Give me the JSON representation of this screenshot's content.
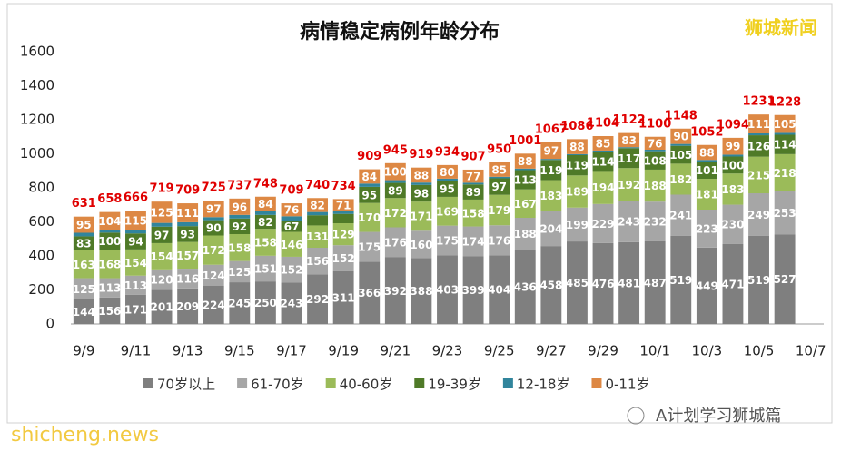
{
  "chart_data": {
    "type": "stacked-bar",
    "title": "病情稳定病例年龄分布",
    "watermarks": [
      "狮城新闻",
      "shicheng.news",
      "A计划学习狮城篇"
    ],
    "categories": [
      "9/9",
      null,
      "9/11",
      null,
      "9/13",
      null,
      "9/15",
      null,
      "9/17",
      null,
      "9/19",
      null,
      "9/21",
      null,
      "9/23",
      null,
      "9/25",
      null,
      "9/27",
      null,
      "9/29",
      null,
      "10/1",
      null,
      "10/3",
      null,
      "10/5",
      null,
      "10/7"
    ],
    "series": [
      {
        "name": "70岁以上",
        "color": "#7f7f7f",
        "values": [
          144,
          156,
          171,
          201,
          209,
          224,
          245,
          250,
          243,
          292,
          311,
          366,
          392,
          388,
          403,
          399,
          404,
          436,
          458,
          485,
          476,
          481,
          487,
          519,
          449,
          471,
          519,
          527,
          null
        ]
      },
      {
        "name": "61-70岁",
        "color": "#a6a6a6",
        "values": [
          125,
          113,
          113,
          120,
          116,
          124,
          125,
          151,
          152,
          156,
          152,
          175,
          176,
          160,
          175,
          174,
          176,
          188,
          204,
          199,
          229,
          243,
          232,
          241,
          223,
          230,
          249,
          253,
          null
        ]
      },
      {
        "name": "40-60岁",
        "color": "#9bbb59",
        "values": [
          163,
          168,
          154,
          154,
          157,
          172,
          158,
          158,
          146,
          131,
          129,
          170,
          172,
          171,
          169,
          158,
          179,
          167,
          183,
          189,
          194,
          192,
          188,
          182,
          181,
          183,
          215,
          218,
          null
        ]
      },
      {
        "name": "19-39岁",
        "color": "#4f7a28",
        "values": [
          83,
          100,
          94,
          97,
          93,
          90,
          92,
          82,
          67,
          60,
          55,
          95,
          89,
          98,
          95,
          89,
          97,
          113,
          119,
          119,
          114,
          117,
          108,
          105,
          101,
          100,
          126,
          114,
          null
        ]
      },
      {
        "name": "12-18岁",
        "color": "#31859c",
        "values": [
          21,
          17,
          19,
          22,
          23,
          18,
          21,
          23,
          25,
          19,
          16,
          19,
          16,
          14,
          12,
          10,
          9,
          9,
          6,
          6,
          6,
          6,
          9,
          11,
          10,
          11,
          11,
          11,
          null
        ]
      },
      {
        "name": "0-11岁",
        "color": "#dd8844",
        "values": [
          95,
          104,
          115,
          125,
          111,
          97,
          96,
          84,
          76,
          82,
          71,
          84,
          100,
          88,
          80,
          77,
          85,
          88,
          97,
          88,
          85,
          83,
          76,
          90,
          88,
          99,
          111,
          105,
          null
        ]
      }
    ],
    "totals": [
      631,
      658,
      666,
      719,
      709,
      725,
      737,
      748,
      709,
      740,
      734,
      909,
      945,
      919,
      934,
      907,
      950,
      1001,
      1067,
      1086,
      1104,
      1122,
      1100,
      1148,
      1052,
      1094,
      1231,
      1228,
      null
    ],
    "ylim": [
      0,
      1600
    ],
    "yticks": [
      0,
      200,
      400,
      600,
      800,
      1000,
      1200,
      1400,
      1600
    ],
    "grid": false
  }
}
